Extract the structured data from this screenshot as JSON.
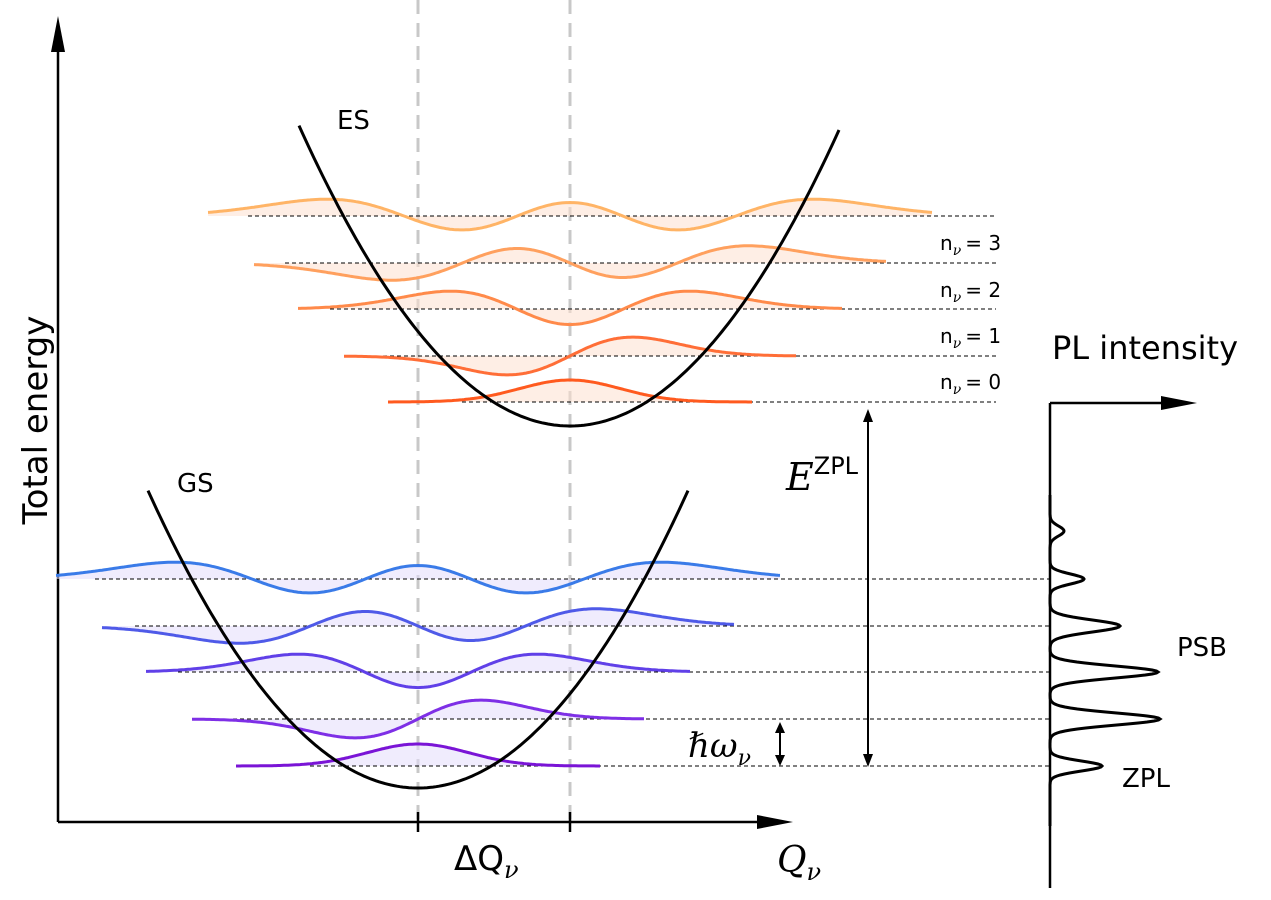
{
  "labels": {
    "y_axis": "Total energy",
    "x_axis": "Q",
    "x_axis_sub": "ν",
    "delta_q": "ΔQ",
    "delta_q_sub": "ν",
    "es": "ES",
    "gs": "GS",
    "ezpl": "E",
    "ezpl_sup": "ZPL",
    "hbar_omega": "ℏω",
    "hbar_omega_sub": "ν",
    "pl_intensity": "PL intensity",
    "psb": "PSB",
    "zpl": "ZPL"
  },
  "levels": [
    {
      "n": "3",
      "prefix": "n",
      "sub": "ν",
      "eq": "= 3"
    },
    {
      "n": "2",
      "prefix": "n",
      "sub": "ν",
      "eq": "= 2"
    },
    {
      "n": "1",
      "prefix": "n",
      "sub": "ν",
      "eq": "= 1"
    },
    {
      "n": "0",
      "prefix": "n",
      "sub": "ν",
      "eq": "= 0"
    }
  ],
  "colors": {
    "es_waves": [
      "#ff5a1f",
      "#ff6e37",
      "#ff8a4a",
      "#ffa05e",
      "#ffb466"
    ],
    "gs_waves": [
      "#7a14d6",
      "#7e2fe6",
      "#6040e8",
      "#4f5ae8",
      "#3a7be8"
    ],
    "es_fill": "#fde0cf",
    "gs_fill": "#e4dcfb",
    "dashed_vertical": "#c8c8c8",
    "curve": "#000000"
  }
}
